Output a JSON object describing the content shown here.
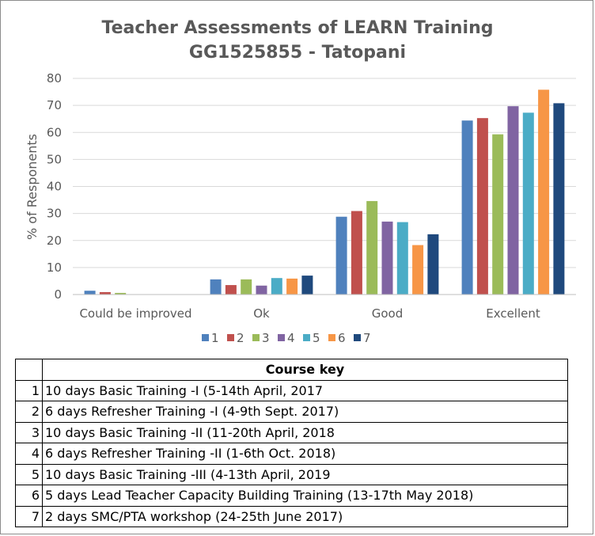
{
  "chart_data": {
    "type": "bar",
    "title": "Teacher Assessments of LEARN Training",
    "subtitle": "GG1525855 - Tatopani",
    "ylabel": "% of Responents",
    "xlabel": "",
    "ylim": [
      0,
      80
    ],
    "yticks": [
      0,
      10,
      20,
      30,
      40,
      50,
      60,
      70,
      80
    ],
    "grid": true,
    "legend_position": "bottom",
    "categories": [
      "Could be improved",
      "Ok",
      "Good",
      "Excellent"
    ],
    "series": [
      {
        "name": "1",
        "color": "#4f81bd",
        "values": [
          1.4,
          5.6,
          28.8,
          64.4
        ]
      },
      {
        "name": "2",
        "color": "#c0504d",
        "values": [
          0.9,
          3.5,
          30.9,
          65.3
        ]
      },
      {
        "name": "3",
        "color": "#9bbb59",
        "values": [
          0.6,
          5.6,
          34.6,
          59.3
        ]
      },
      {
        "name": "4",
        "color": "#8064a2",
        "values": [
          0,
          3.3,
          27.0,
          69.7
        ]
      },
      {
        "name": "5",
        "color": "#4bacc6",
        "values": [
          0,
          6.1,
          26.8,
          67.3
        ]
      },
      {
        "name": "6",
        "color": "#f79646",
        "values": [
          0,
          5.9,
          18.3,
          75.8
        ]
      },
      {
        "name": "7",
        "color": "#1f497d",
        "values": [
          0,
          7.0,
          22.3,
          70.8
        ]
      }
    ]
  },
  "course_key": {
    "header": "Course key",
    "rows": [
      {
        "num": "1",
        "desc": "10 days Basic Training -I (5-14th April, 2017"
      },
      {
        "num": "2",
        "desc": "6 days Refresher Training -I  (4-9th Sept. 2017)"
      },
      {
        "num": "3",
        "desc": "10 days Basic Training -II  (11-20th April, 2018"
      },
      {
        "num": "4",
        "desc": "6 days Refresher Training -II  (1-6th Oct. 2018)"
      },
      {
        "num": "5",
        "desc": "10 days Basic Training -III  (4-13th April, 2019"
      },
      {
        "num": "6",
        "desc": "5 days Lead Teacher Capacity Building Training (13-17th May 2018)"
      },
      {
        "num": "7",
        "desc": "2 days SMC/PTA workshop (24-25th June 2017)"
      }
    ]
  }
}
